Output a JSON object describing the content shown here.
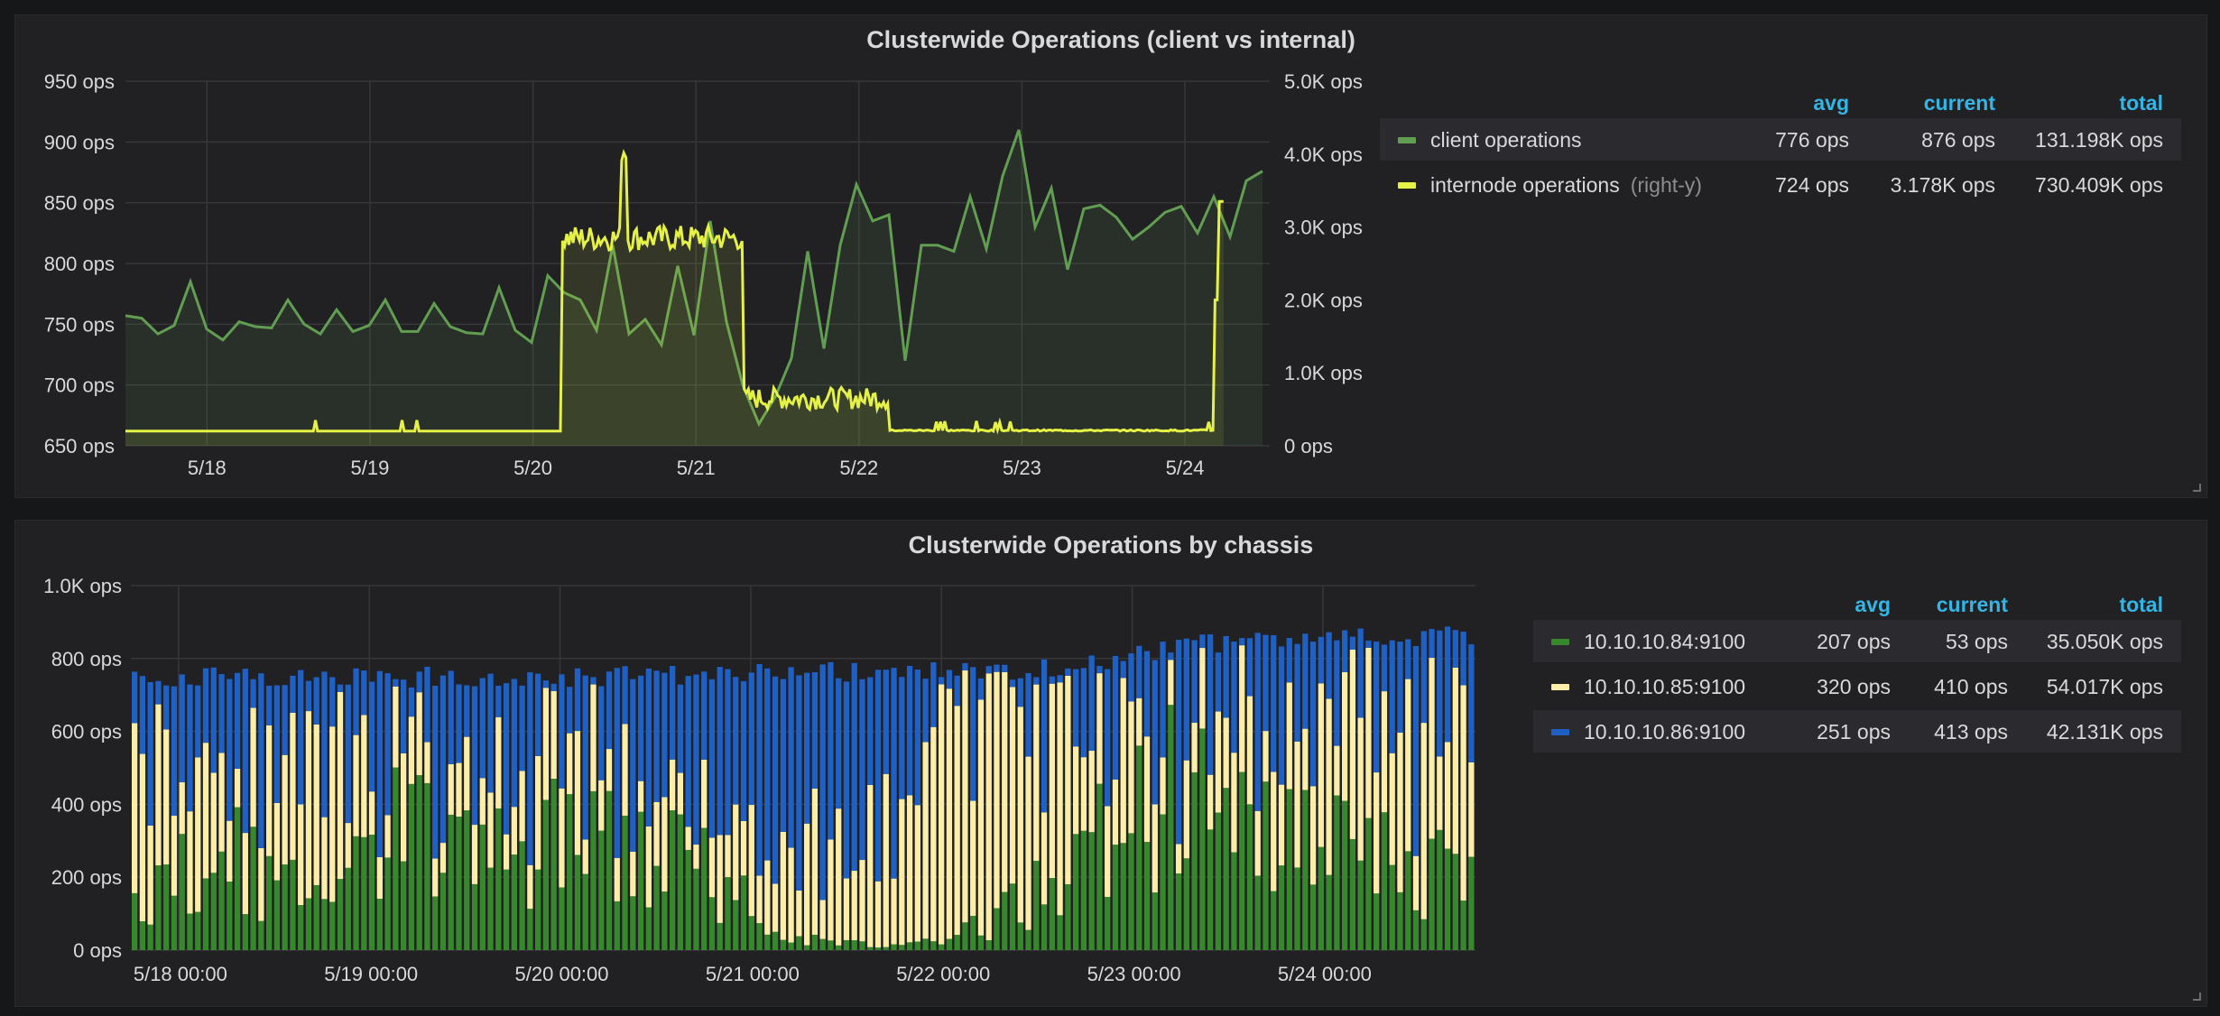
{
  "panels": [
    {
      "title": "Clusterwide Operations (client vs internal)",
      "legend": {
        "headers": {
          "avg": "avg",
          "current": "current",
          "total": "total"
        },
        "rows": [
          {
            "name": "client operations",
            "suffix": "",
            "avg": "776 ops",
            "current": "876 ops",
            "total": "131.198K ops",
            "color": "#629e51"
          },
          {
            "name": "internode operations",
            "suffix": "(right-y)",
            "avg": "724 ops",
            "current": "3.178K ops",
            "total": "730.409K ops",
            "color": "#e5f145"
          }
        ]
      }
    },
    {
      "title": "Clusterwide Operations by chassis",
      "legend": {
        "headers": {
          "avg": "avg",
          "current": "current",
          "total": "total"
        },
        "rows": [
          {
            "name": "10.10.10.84:9100",
            "suffix": "",
            "avg": "207 ops",
            "current": "53 ops",
            "total": "35.050K ops",
            "color": "#37872d"
          },
          {
            "name": "10.10.10.85:9100",
            "suffix": "",
            "avg": "320 ops",
            "current": "410 ops",
            "total": "54.017K ops",
            "color": "#fceea6"
          },
          {
            "name": "10.10.10.86:9100",
            "suffix": "",
            "avg": "251 ops",
            "current": "413 ops",
            "total": "42.131K ops",
            "color": "#1f60c4"
          }
        ]
      }
    }
  ],
  "chart_data": [
    {
      "type": "line",
      "title": "Clusterwide Operations (client vs internal)",
      "x_range": [
        "5/17 18:00",
        "5/24 20:00"
      ],
      "x_ticks": [
        "5/18",
        "5/19",
        "5/20",
        "5/21",
        "5/22",
        "5/23",
        "5/24"
      ],
      "y_left": {
        "ticks": [
          "950 ops",
          "900 ops",
          "850 ops",
          "800 ops",
          "750 ops",
          "700 ops",
          "650 ops"
        ],
        "range": [
          650,
          950
        ],
        "unit": "ops"
      },
      "y_right": {
        "ticks": [
          "5.0K ops",
          "4.0K ops",
          "3.0K ops",
          "2.0K ops",
          "1.0K ops",
          "0 ops"
        ],
        "range": [
          0,
          5000
        ],
        "unit": "ops"
      },
      "grid": true,
      "legend_position": "right",
      "series": [
        {
          "name": "client operations",
          "axis": "left",
          "color": "#629e51",
          "x_days": [
            0,
            0.1,
            0.2,
            0.3,
            0.4,
            0.5,
            0.6,
            0.7,
            0.8,
            0.9,
            1.0,
            1.1,
            1.2,
            1.3,
            1.4,
            1.5,
            1.6,
            1.7,
            1.8,
            1.9,
            2.0,
            2.1,
            2.2,
            2.3,
            2.4,
            2.5,
            2.6,
            2.7,
            2.8,
            2.9,
            3.0,
            3.1,
            3.2,
            3.3,
            3.4,
            3.5,
            3.6,
            3.7,
            3.8,
            3.9,
            4.0,
            4.1,
            4.2,
            4.3,
            4.4,
            4.5,
            4.6,
            4.7,
            4.8,
            4.9,
            5.0,
            5.1,
            5.2,
            5.3,
            5.4,
            5.5,
            5.6,
            5.7,
            5.8,
            5.9,
            6.0,
            6.1,
            6.2,
            6.3,
            6.4,
            6.5,
            6.6,
            6.7,
            6.8,
            6.9,
            7.0
          ],
          "values": [
            757,
            755,
            742,
            749,
            785,
            746,
            737,
            752,
            748,
            747,
            770,
            750,
            742,
            762,
            744,
            749,
            770,
            744,
            744,
            767,
            748,
            743,
            742,
            780,
            745,
            735,
            790,
            776,
            770,
            745,
            815,
            742,
            754,
            733,
            798,
            741,
            835,
            752,
            700,
            668,
            690,
            722,
            810,
            730,
            815,
            865,
            835,
            840,
            720,
            815,
            815,
            810,
            855,
            812,
            872,
            910,
            830,
            862,
            795,
            845,
            848,
            838,
            820,
            830,
            842,
            847,
            825,
            855,
            822,
            868,
            876
          ]
        },
        {
          "name": "internode operations",
          "axis": "right",
          "color": "#e5f145",
          "x_days": [
            0,
            0.4,
            0.45,
            0.5,
            1.0,
            2.0,
            2.69,
            2.7,
            2.8,
            3.0,
            3.2,
            3.0,
            3.4,
            3.6,
            3.8,
            3.85,
            4.0,
            4.1,
            4.2,
            4.3,
            4.4,
            4.6,
            4.7,
            4.8,
            4.9,
            5.0,
            5.5,
            6.0,
            6.7,
            6.72,
            6.76
          ],
          "values": [
            200,
            200,
            350,
            200,
            200,
            200,
            200,
            2850,
            2900,
            2700,
            3000,
            4100,
            2900,
            2800,
            2850,
            600,
            750,
            850,
            650,
            620,
            700,
            500,
            220,
            200,
            200,
            200,
            210,
            220,
            200,
            2000,
            3350
          ]
        }
      ]
    },
    {
      "type": "bar",
      "stacked": true,
      "title": "Clusterwide Operations by chassis",
      "x_range": [
        "5/17 18:00",
        "5/24 20:00"
      ],
      "x_ticks": [
        "5/18 00:00",
        "5/19 00:00",
        "5/20 00:00",
        "5/21 00:00",
        "5/22 00:00",
        "5/23 00:00",
        "5/24 00:00"
      ],
      "y_ticks": [
        "1.0K ops",
        "800 ops",
        "600 ops",
        "400 ops",
        "200 ops",
        "0 ops"
      ],
      "ylim": [
        0,
        1000
      ],
      "grid": true,
      "legend_position": "right",
      "bar_count": 170,
      "total_profile": {
        "x_days": [
          0,
          3.0,
          3.5,
          4.0,
          4.5,
          5.0,
          5.5,
          6.0,
          6.5,
          7.1
        ],
        "values": [
          750,
          750,
          760,
          760,
          765,
          780,
          840,
          850,
          855,
          860
        ]
      },
      "series": [
        {
          "name": "10.10.10.84:9100",
          "color": "#37872d",
          "profile": {
            "x_days": [
              0,
              0.5,
              1.0,
              1.5,
              2.0,
              2.5,
              3.0,
              3.5,
              4.0,
              4.5,
              5.0,
              5.5,
              6.0,
              6.5,
              7.1
            ],
            "values": [
              150,
              270,
              120,
              400,
              300,
              330,
              240,
              30,
              10,
              80,
              280,
              460,
              300,
              260,
              200
            ]
          }
        },
        {
          "name": "10.10.10.85:9100",
          "color": "#fceea6",
          "profile": {
            "x_days": [
              0,
              0.5,
              1.0,
              1.5,
              2.0,
              2.5,
              3.0,
              3.5,
              4.0,
              4.5,
              5.0,
              5.5,
              6.0,
              6.5,
              7.1
            ],
            "values": [
              300,
              250,
              350,
              150,
              220,
              200,
              130,
              240,
              360,
              580,
              430,
              170,
              260,
              330,
              360
            ]
          }
        },
        {
          "name": "10.10.10.86:9100",
          "color": "#1f60c4",
          "profile": {
            "x_days": [
              0,
              7.1
            ],
            "values": [
              "remainder",
              "remainder"
            ]
          }
        }
      ]
    }
  ]
}
